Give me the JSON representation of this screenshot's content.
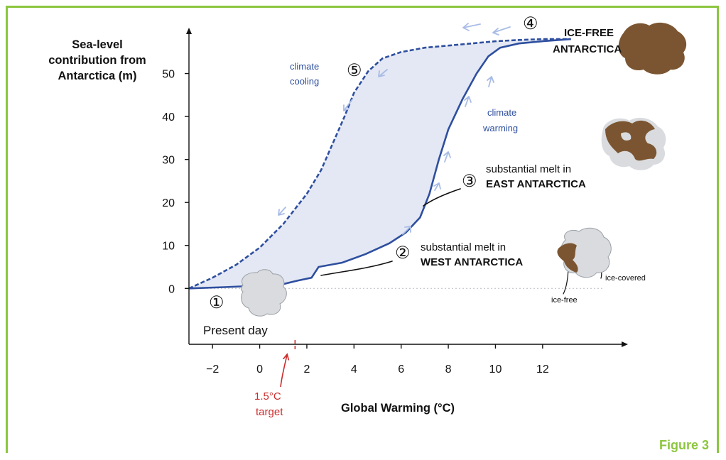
{
  "figure_label": "Figure 3",
  "chart_data": {
    "type": "area",
    "xlabel": "Global Warming (°C)",
    "ylabel": "Sea-level contribution from Antarctica (m)",
    "xlim": [
      -3,
      15.5
    ],
    "ylim": [
      -13,
      60
    ],
    "x_ticks": [
      -2,
      0,
      2,
      4,
      6,
      8,
      10,
      12
    ],
    "y_ticks": [
      0,
      10,
      20,
      30,
      40,
      50
    ],
    "grid": false,
    "series": [
      {
        "name": "climate warming",
        "style": "solid",
        "x": [
          -3,
          -1.5,
          -0.2,
          1,
          1.6,
          2.2,
          2.5,
          3.5,
          4.5,
          5.5,
          6.2,
          6.8,
          7.2,
          7.6,
          8.0,
          8.6,
          9.2,
          9.7,
          10.2,
          11,
          12,
          13.2
        ],
        "y": [
          0,
          0.3,
          0.6,
          1,
          1.8,
          2.5,
          5,
          6,
          8,
          10.5,
          13,
          16.5,
          22,
          30,
          37,
          44,
          50,
          54,
          56,
          57,
          57.5,
          58
        ]
      },
      {
        "name": "climate cooling",
        "style": "dashed",
        "x": [
          -3,
          -2,
          -1,
          0,
          1,
          2,
          2.6,
          3.2,
          3.6,
          4,
          4.6,
          5.2,
          6,
          7,
          8,
          9,
          10,
          11,
          12,
          13.2
        ],
        "y": [
          0,
          2.5,
          5.5,
          9.5,
          15,
          22,
          27.5,
          35,
          40,
          45.5,
          50.5,
          53.5,
          55,
          56,
          56.5,
          57,
          57.5,
          57.8,
          58,
          58
        ]
      }
    ],
    "annotations": {
      "present": {
        "num": "①",
        "text": "Present day"
      },
      "west": {
        "num": "②",
        "line1": "substantial melt in",
        "line2": "WEST ANTARCTICA"
      },
      "east": {
        "num": "③",
        "line1": "substantial melt in",
        "line2": "EAST ANTARCTICA"
      },
      "icefree": {
        "num": "④",
        "line1": "ICE-FREE",
        "line2": "ANTARCTICA"
      },
      "cooling": {
        "num": "⑤",
        "line1": "climate",
        "line2": "cooling"
      },
      "warming": {
        "line1": "climate",
        "line2": "warming"
      },
      "target": {
        "line1": "1.5°C",
        "line2": "target",
        "x": 1.5
      },
      "ice_covered": "ice-covered",
      "ice_free": "ice-free"
    },
    "colors": {
      "curve": "#2e4f9f",
      "fill": "#e4e8f4",
      "arrows": "#a9bce6",
      "target": "#cc2b2b",
      "ice": "#d9dbde",
      "land": "#7b5531",
      "frame": "#8cc63f"
    }
  }
}
